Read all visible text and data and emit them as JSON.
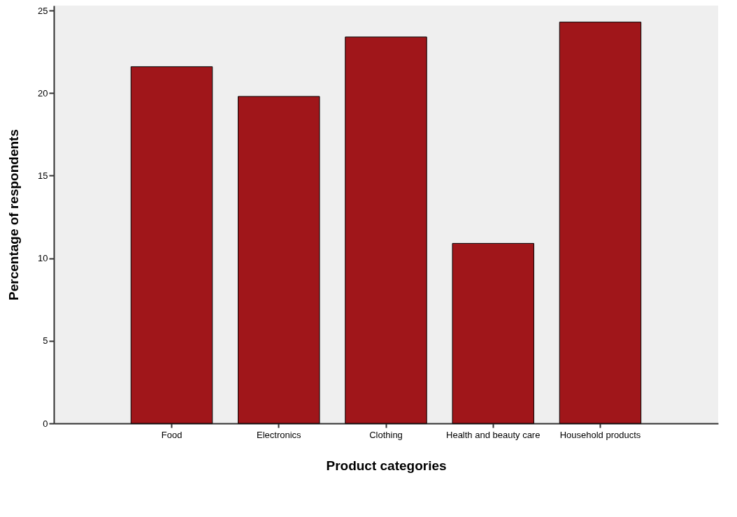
{
  "chart_data": {
    "type": "bar",
    "xlabel": "Product categories",
    "ylabel": "Percentage of respondents",
    "categories": [
      "Food",
      "Electronics",
      "Clothing",
      "Health and beauty care",
      "Household products"
    ],
    "values": [
      21.6,
      19.8,
      23.4,
      10.9,
      24.3
    ],
    "color": "#a0161a",
    "ylim": [
      0,
      25.3
    ],
    "yticks": [
      0,
      5,
      10,
      15,
      20,
      25
    ],
    "grid": false
  }
}
